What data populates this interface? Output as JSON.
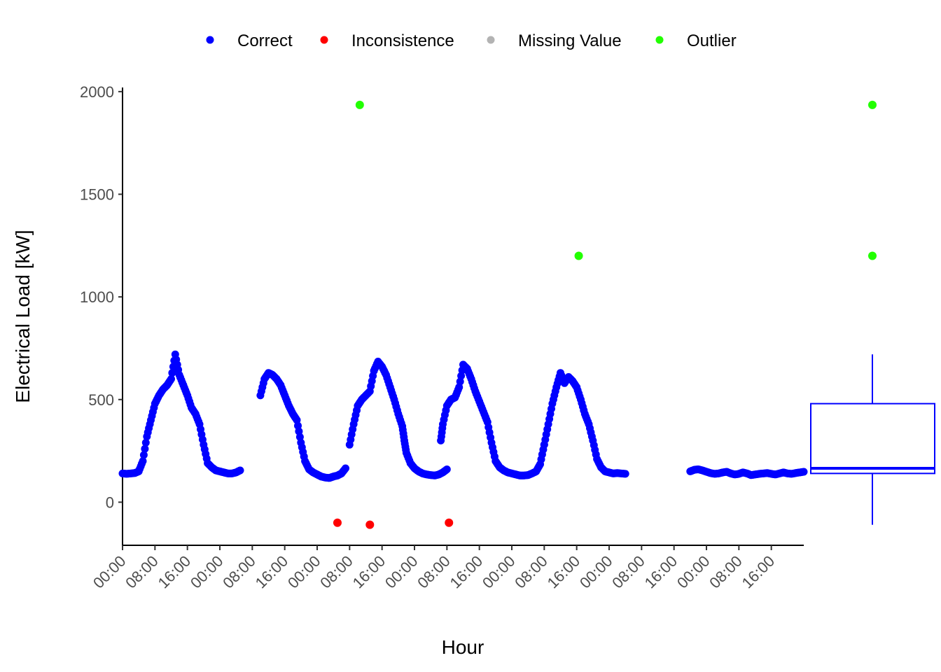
{
  "chart_data": {
    "type": "scatter",
    "xlabel": "Hour",
    "ylabel": "Electrical Load [kW]",
    "ylim": [
      -210,
      2020
    ],
    "y_ticks": [
      0,
      500,
      1000,
      1500,
      2000
    ],
    "x_tick_labels": [
      "00:00",
      "08:00",
      "16:00",
      "00:00",
      "08:00",
      "16:00",
      "00:00",
      "08:00",
      "16:00",
      "00:00",
      "08:00",
      "16:00",
      "00:00",
      "08:00",
      "16:00",
      "00:00",
      "08:00",
      "16:00",
      "00:00",
      "08:00",
      "16:00"
    ],
    "x_range_hours": [
      0,
      168
    ],
    "legend": {
      "position": "top",
      "items": [
        {
          "label": "Correct",
          "color": "#0000ff"
        },
        {
          "label": "Inconsistence",
          "color": "#ff0000"
        },
        {
          "label": "Missing Value",
          "color": "#b3b3b3"
        },
        {
          "label": "Outlier",
          "color": "#22ff00"
        }
      ]
    },
    "correct_segments": [
      {
        "x": [
          0,
          1,
          2,
          3,
          4,
          5,
          6,
          7,
          8,
          9,
          10,
          11,
          12,
          13,
          14,
          15,
          16,
          17,
          18,
          19,
          20,
          21,
          22,
          23,
          24,
          25,
          26,
          27,
          28,
          29
        ],
        "y": [
          140,
          138,
          140,
          142,
          150,
          200,
          320,
          400,
          480,
          520,
          550,
          570,
          600,
          720,
          620,
          570,
          520,
          460,
          430,
          380,
          280,
          190,
          170,
          155,
          150,
          145,
          140,
          140,
          145,
          155
        ]
      },
      {
        "x": [
          34,
          35,
          36,
          37,
          38,
          39,
          40,
          41,
          42,
          43,
          44,
          45,
          46,
          47,
          48,
          49,
          50,
          51,
          52,
          53,
          54,
          55
        ],
        "y": [
          520,
          600,
          630,
          620,
          600,
          570,
          520,
          470,
          430,
          400,
          290,
          200,
          160,
          145,
          135,
          125,
          120,
          118,
          125,
          130,
          140,
          165
        ]
      },
      {
        "x": [
          56,
          57,
          58,
          59,
          60,
          61,
          62,
          63,
          64,
          65,
          66,
          67,
          68,
          69,
          69.5,
          70,
          71,
          72,
          73,
          74,
          75,
          76,
          77,
          78,
          79,
          80
        ],
        "y": [
          280,
          380,
          470,
          500,
          520,
          540,
          640,
          685,
          660,
          620,
          560,
          500,
          430,
          370,
          300,
          240,
          190,
          165,
          150,
          140,
          135,
          132,
          130,
          135,
          145,
          160
        ]
      },
      {
        "x": [
          78.5,
          79,
          80,
          81,
          82,
          83,
          84,
          85,
          86,
          87,
          88,
          89,
          90,
          91,
          92,
          93,
          94,
          95,
          96,
          97,
          98,
          99,
          100,
          101,
          102,
          103,
          104
        ],
        "y": [
          300,
          380,
          470,
          500,
          510,
          560,
          670,
          650,
          600,
          540,
          490,
          440,
          390,
          290,
          200,
          170,
          155,
          145,
          140,
          135,
          130,
          130,
          132,
          140,
          150,
          185,
          280
        ]
      },
      {
        "x": [
          104,
          105,
          106,
          107,
          108,
          109,
          110,
          111,
          112,
          113,
          114,
          115,
          116,
          117,
          118,
          119,
          120,
          121,
          122,
          123,
          124
        ],
        "y": [
          280,
          380,
          480,
          560,
          630,
          580,
          610,
          590,
          560,
          500,
          430,
          380,
          300,
          210,
          170,
          150,
          145,
          140,
          142,
          140,
          138
        ]
      },
      {
        "x": [
          140,
          141,
          142,
          143,
          144,
          145,
          146,
          147,
          148,
          149,
          150,
          151,
          152,
          153,
          154,
          155,
          156,
          157,
          158,
          159,
          160,
          161,
          162,
          163,
          164,
          165,
          166,
          167,
          168
        ],
        "y": [
          150,
          158,
          160,
          155,
          148,
          142,
          138,
          140,
          145,
          148,
          140,
          135,
          138,
          145,
          140,
          132,
          135,
          138,
          140,
          142,
          138,
          135,
          140,
          145,
          140,
          138,
          142,
          145,
          148
        ]
      }
    ],
    "inconsistence": {
      "x": [
        53,
        61,
        80.5
      ],
      "y": [
        -100,
        -110,
        -100
      ]
    },
    "outliers": {
      "x": [
        58.5,
        112.5
      ],
      "y": [
        1935,
        1200
      ]
    },
    "boxplot": {
      "min": -110,
      "q1": 140,
      "median": 165,
      "q3": 480,
      "max": 720,
      "outliers": [
        1200,
        1935
      ]
    }
  }
}
